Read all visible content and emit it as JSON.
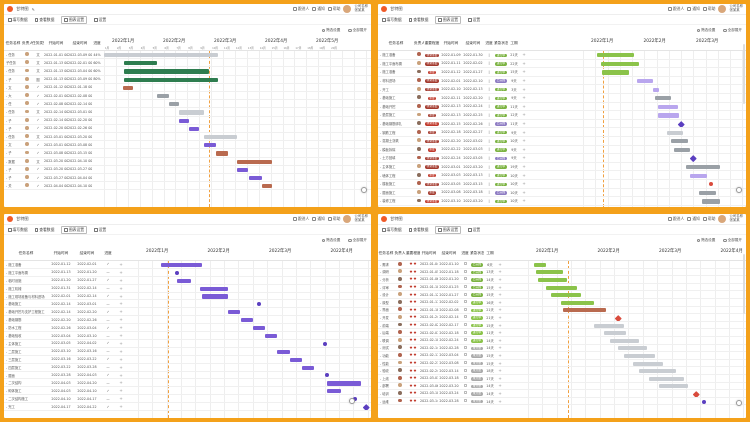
{
  "colors": {
    "frame": "#f4a11a",
    "accent": "#f05a28",
    "green": "#2e7d4f",
    "purple": "#7a5bd6",
    "brown": "#b96a4f",
    "lime": "#8bc34a",
    "milestone_purple": "#5b3fc0",
    "milestone_red": "#d94b3d"
  },
  "icons": {
    "logo": "logo-icon",
    "avatar": "avatar-icon",
    "plus": "plus-icon"
  },
  "panels": [
    {
      "appbar": {
        "app_name": "甘特图",
        "buttons": [
          "跟进人",
          "通知",
          "帮助"
        ],
        "user": "公司名称\n张某某"
      },
      "toolbar": [
        "填写数据",
        "查看数据",
        "图表设置",
        "设置"
      ],
      "subbar": [
        "筛选设置",
        "全部展开"
      ],
      "columns": [
        "任务名称",
        "负责人",
        "任务类型",
        "开始时间",
        "结束时间",
        "进度"
      ],
      "col_widths": [
        0,
        0,
        0,
        0,
        0,
        0
      ],
      "months": [
        "2022年1月",
        "2022年2月",
        "2022年3月",
        "2022年4月",
        "2022年5月"
      ],
      "weeks": [
        "1周",
        "2周",
        "3周",
        "4周",
        "5周",
        "6周",
        "7周",
        "8周",
        "9周",
        "10周",
        "11周",
        "12周",
        "13周",
        "14周",
        "15周",
        "16周",
        "17周",
        "18周",
        "19周",
        "20周"
      ],
      "rows": [
        {
          "name": "- 任务",
          "owner": "○",
          "type": "文",
          "start": "2022-01-01 00:00",
          "end": "2022-03-09 00:00",
          "progress": "44%"
        },
        {
          "name": "  子任务",
          "owner": "○",
          "type": "文",
          "start": "2022-01-13 00:00",
          "end": "2022-02-01 00:00",
          "progress": "60%"
        },
        {
          "name": "  - 任务",
          "owner": "○",
          "type": "文",
          "start": "2022-01-13 00:00",
          "end": "2022-03-04 00:00",
          "progress": "60%"
        },
        {
          "name": "  - 子",
          "owner": "○",
          "type": "图",
          "start": "2022-01-13 00:00",
          "end": "2022-03-09 00:00",
          "progress": "80%"
        },
        {
          "name": "  - 文",
          "owner": "○",
          "type": "✓",
          "start": "2022-01-12 00:00",
          "end": "2022-01-18 00:00",
          "progress": ""
        },
        {
          "name": "  - 大",
          "owner": "○",
          "type": "✓",
          "start": "2022-02-01 00:00",
          "end": "2022-02-08 00:00",
          "progress": ""
        },
        {
          "name": "  - 任",
          "owner": "○",
          "type": "✓",
          "start": "2022-02-08 00:00",
          "end": "2022-02-14 00:00",
          "progress": ""
        },
        {
          "name": "- 任务",
          "owner": "○",
          "type": "文",
          "start": "2022-02-14 00:00",
          "end": "2022-03-01 00:00",
          "progress": ""
        },
        {
          "name": "  - 子",
          "owner": "○",
          "type": "✓",
          "start": "2022-02-14 00:00",
          "end": "2022-02-20 00:00",
          "progress": ""
        },
        {
          "name": "  - 子",
          "owner": "○",
          "type": "✓",
          "start": "2022-02-20 00:00",
          "end": "2022-02-26 00:00",
          "progress": ""
        },
        {
          "name": "- 任务",
          "owner": "○",
          "type": "文",
          "start": "2022-03-01 00:00",
          "end": "2022-03-20 00:00",
          "progress": ""
        },
        {
          "name": "  - 文",
          "owner": "○",
          "type": "✓",
          "start": "2022-03-01 00:00",
          "end": "2022-03-08 00:00",
          "progress": ""
        },
        {
          "name": "  - 子",
          "owner": "○",
          "type": "✓",
          "start": "2022-03-08 00:00",
          "end": "2022-03-15 00:00",
          "progress": ""
        },
        {
          "name": "- 数据",
          "owner": "○",
          "type": "文",
          "start": "2022-03-20 00:00",
          "end": "2022-04-10 00:00",
          "progress": ""
        },
        {
          "name": "  - 子",
          "owner": "○",
          "type": "✓",
          "start": "2022-03-20 00:00",
          "end": "2022-03-27 00:00",
          "progress": ""
        },
        {
          "name": "  - 子",
          "owner": "○",
          "type": "✓",
          "start": "2022-03-27 00:00",
          "end": "2022-04-04 00:00",
          "progress": ""
        },
        {
          "name": "  - 关",
          "owner": "○",
          "type": "✓",
          "start": "2022-04-04 00:00",
          "end": "2022-04-10 00:00",
          "progress": ""
        }
      ]
    },
    {
      "appbar": {
        "app_name": "甘特图",
        "buttons": [
          "跟进人",
          "通知",
          "帮助"
        ],
        "user": "公司名称\n张某某"
      },
      "toolbar": [
        "填写数据",
        "查看数据",
        "图表设置",
        "设置"
      ],
      "subbar": [
        "筛选设置",
        "全部展开"
      ],
      "columns": [
        "任务名称",
        "负责人",
        "重要程度",
        "开始时间",
        "结束时间",
        "进度",
        "紧急状态",
        "工期"
      ],
      "months": [
        "2022年1月",
        "2022年2月",
        "2022年3月",
        "2022年4月"
      ],
      "rows": [
        {
          "name": "- 施工准备",
          "pri": "非常重要",
          "start": "2022-01-09",
          "end": "2022-01-30",
          "state": "进行中",
          "dur": "21天"
        },
        {
          "name": "- 施工平面布置",
          "pri": "非常重要",
          "start": "2022-01-11",
          "end": "2022-02-02",
          "state": "进行中",
          "dur": "22天"
        },
        {
          "name": "- 施工准备",
          "pri": "重要",
          "start": "2022-01-12",
          "end": "2022-01-27",
          "state": "进行中",
          "dur": "15天"
        },
        {
          "name": "  - 材料进场",
          "pri": "非常重要",
          "start": "2022-02-01",
          "end": "2022-02-10",
          "state": "已完成",
          "dur": "9天"
        },
        {
          "name": "  - 开工",
          "pri": "非常重要",
          "start": "2022-02-10",
          "end": "2022-02-13",
          "state": "进行中",
          "dur": "3天"
        },
        {
          "name": "- 基础施工",
          "pri": "重要",
          "start": "2022-02-11",
          "end": "2022-02-20",
          "state": "进行中",
          "dur": "9天"
        },
        {
          "name": "  - 基础开挖",
          "pri": "非常重要",
          "start": "2022-02-13",
          "end": "2022-02-24",
          "state": "进行中",
          "dur": "11天"
        },
        {
          "name": "  - 垫层施工",
          "pri": "重要",
          "start": "2022-02-13",
          "end": "2022-02-25",
          "state": "进行中",
          "dur": "12天"
        },
        {
          "name": "  - 基础钢筋绑扎",
          "pri": "非常重要",
          "start": "2022-02-15",
          "end": "2022-02-26",
          "state": "已完成",
          "dur": "11天"
        },
        {
          "name": "  - 钢筋工程",
          "pri": "重要",
          "start": "2022-02-18",
          "end": "2022-02-27",
          "state": "进行中",
          "dur": "9天"
        },
        {
          "name": "  - 混凝土浇筑",
          "pri": "非常重要",
          "start": "2022-02-20",
          "end": "2022-03-02",
          "state": "进行中",
          "dur": "10天"
        },
        {
          "name": "  - 模板拆除",
          "pri": "重要",
          "start": "2022-02-22",
          "end": "2022-03-03",
          "state": "进行中",
          "dur": "9天"
        },
        {
          "name": "  - 土方回填",
          "pri": "非常重要",
          "start": "2022-02-24",
          "end": "2022-03-05",
          "state": "已完成",
          "dur": "9天"
        },
        {
          "name": "- 主体施工",
          "pri": "非常重要",
          "start": "2022-03-01",
          "end": "2022-03-20",
          "state": "进行中",
          "dur": "19天"
        },
        {
          "name": "  - 墙体工程",
          "pri": "重要",
          "start": "2022-03-03",
          "end": "2022-03-13",
          "state": "进行中",
          "dur": "10天"
        },
        {
          "name": "  - 楼板施工",
          "pri": "非常重要",
          "start": "2022-03-05",
          "end": "2022-03-15",
          "state": "进行中",
          "dur": "10天"
        },
        {
          "name": "  - 屋面施工",
          "pri": "重要",
          "start": "2022-03-08",
          "end": "2022-03-18",
          "state": "已完成",
          "dur": "10天"
        },
        {
          "name": "  - 装修工程",
          "pri": "非常重要",
          "start": "2022-03-10",
          "end": "2022-03-20",
          "state": "进行中",
          "dur": "10天"
        }
      ]
    },
    {
      "appbar": {
        "app_name": "甘特图",
        "buttons": [
          "跟进人",
          "通知",
          "帮助"
        ],
        "user": "公司名称\n张某某"
      },
      "toolbar": [
        "填写数据",
        "查看数据",
        "图表设置",
        "设置"
      ],
      "subbar": [
        "筛选设置",
        "全部展开"
      ],
      "columns": [
        "任务名称",
        "开始时间",
        "结束时间",
        "进度"
      ],
      "months": [
        "2022年1月",
        "2022年2月",
        "2022年3月",
        "2022年4月",
        "2022年5月"
      ],
      "rows": [
        {
          "name": "- 施工准备",
          "start": "2022-01-12",
          "end": "2022-02-01"
        },
        {
          "name": "  - 施工平面布置",
          "start": "2022-01-13",
          "end": "2022-01-20"
        },
        {
          "name": "  - 临时设施",
          "start": "2022-01-20",
          "end": "2022-01-27"
        },
        {
          "name": "  - 施工机械",
          "start": "2022-01-31",
          "end": "2022-02-14"
        },
        {
          "name": "  - 施工现场准备与材料进场",
          "start": "2022-02-01",
          "end": "2022-02-14"
        },
        {
          "name": "- 基础施工",
          "start": "2022-02-14",
          "end": "2022-03-01"
        },
        {
          "name": "  - 基础开挖与支护工程施工",
          "start": "2022-02-14",
          "end": "2022-02-20"
        },
        {
          "name": "  - 基础钢筋",
          "start": "2022-02-20",
          "end": "2022-02-26"
        },
        {
          "name": "  - 防水工程",
          "start": "2022-02-26",
          "end": "2022-03-04"
        },
        {
          "name": "  - 基础验收",
          "start": "2022-03-04",
          "end": "2022-03-10"
        },
        {
          "name": "- 主体施工",
          "start": "2022-03-05",
          "end": "2022-04-02"
        },
        {
          "name": "  - 二层施工",
          "start": "2022-03-10",
          "end": "2022-03-16"
        },
        {
          "name": "  - 三层施工",
          "start": "2022-03-16",
          "end": "2022-03-22"
        },
        {
          "name": "  - 四层施工",
          "start": "2022-03-22",
          "end": "2022-03-28"
        },
        {
          "name": "  - 屋面",
          "start": "2022-03-28",
          "end": "2022-04-03"
        },
        {
          "name": "- 二次结构",
          "start": "2022-04-03",
          "end": "2022-04-20"
        },
        {
          "name": "  - 砌体施工",
          "start": "2022-04-03",
          "end": "2022-04-10"
        },
        {
          "name": "  - 二次结构施工",
          "start": "2022-04-10",
          "end": "2022-04-17"
        },
        {
          "name": "- 完工",
          "start": "2022-04-17",
          "end": "2022-04-22"
        }
      ]
    },
    {
      "appbar": {
        "app_name": "甘特图",
        "buttons": [
          "跟进人",
          "通知",
          "帮助"
        ],
        "user": "公司名称\n张某某"
      },
      "toolbar": [
        "填写数据",
        "查看数据",
        "图表设置",
        "设置"
      ],
      "subbar": [
        "筛选设置",
        "全部展开"
      ],
      "columns": [
        "任务名称",
        "负责人",
        "重要程度",
        "开始时间",
        "结束时间",
        "进度",
        "紧急状态",
        "工期"
      ],
      "months": [
        "2022年1月",
        "2022年2月",
        "2022年3月",
        "2022年4月",
        "2022年5月"
      ],
      "rows": [
        {
          "name": "- 需求",
          "start": "2022-01-04",
          "end": "2022-01-10",
          "state": "已完成",
          "dur": "6天"
        },
        {
          "name": "  - 调研",
          "start": "2022-01-05",
          "end": "2022-01-18",
          "state": "已完成",
          "dur": "13天"
        },
        {
          "name": "  - 分析",
          "start": "2022-01-06",
          "end": "2022-01-20",
          "state": "已完成",
          "dur": "14天"
        },
        {
          "name": "  - 评审",
          "start": "2022-01-10",
          "end": "2022-01-25",
          "state": "已完成",
          "dur": "15天"
        },
        {
          "name": "- 设计",
          "start": "2022-01-12",
          "end": "2022-01-27",
          "state": "已完成",
          "dur": "15天"
        },
        {
          "name": "  - 原型",
          "start": "2022-01-17",
          "end": "2022-02-02",
          "state": "进行中",
          "dur": "16天"
        },
        {
          "name": "  - 界面",
          "start": "2022-01-18",
          "end": "2022-02-08",
          "state": "进行中",
          "dur": "21天"
        },
        {
          "name": "- 开发",
          "start": "2022-01-24",
          "end": "2022-02-14",
          "state": "进行中",
          "dur": "21天"
        },
        {
          "name": "  - 前端",
          "start": "2022-02-02",
          "end": "2022-02-17",
          "state": "进行中",
          "dur": "15天"
        },
        {
          "name": "  - 后端",
          "start": "2022-02-07",
          "end": "2022-02-18",
          "state": "进行中",
          "dur": "11天"
        },
        {
          "name": "  - 联调",
          "start": "2022-02-10",
          "end": "2022-02-24",
          "state": "进行中",
          "dur": "14天"
        },
        {
          "name": "- 测试",
          "start": "2022-02-14",
          "end": "2022-02-28",
          "state": "未开始",
          "dur": "14天"
        },
        {
          "name": "  - 功能",
          "start": "2022-02-17",
          "end": "2022-03-04",
          "state": "未开始",
          "dur": "15天"
        },
        {
          "name": "  - 性能",
          "start": "2022-02-21",
          "end": "2022-03-08",
          "state": "未开始",
          "dur": "15天"
        },
        {
          "name": "  - 验收",
          "start": "2022-02-24",
          "end": "2022-03-14",
          "state": "未开始",
          "dur": "18天"
        },
        {
          "name": "- 上线",
          "start": "2022-03-01",
          "end": "2022-03-18",
          "state": "未开始",
          "dur": "17天"
        },
        {
          "name": "  - 部署",
          "start": "2022-03-06",
          "end": "2022-03-20",
          "state": "未开始",
          "dur": "14天"
        },
        {
          "name": "  - 培训",
          "start": "2022-03-10",
          "end": "2022-03-24",
          "state": "未开始",
          "dur": "14天"
        },
        {
          "name": "  - 运维",
          "start": "2022-03-14",
          "end": "2022-03-28",
          "state": "未开始",
          "dur": "14天"
        }
      ]
    }
  ]
}
